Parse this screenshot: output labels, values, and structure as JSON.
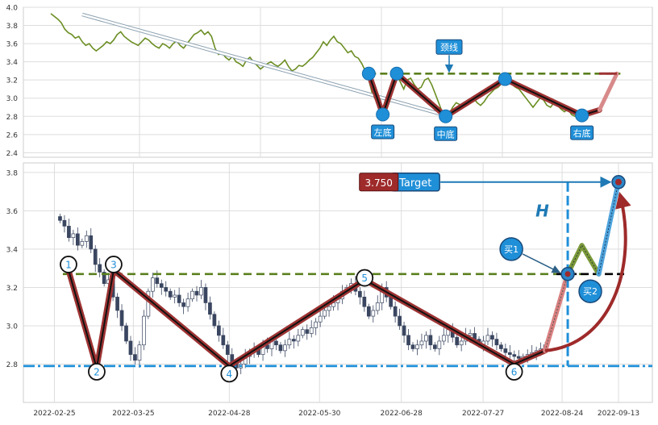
{
  "chart_data": [
    {
      "type": "line",
      "title": "",
      "ylim": [
        2.35,
        4.0
      ],
      "yticks": [
        2.4,
        2.6,
        2.8,
        3.0,
        3.2,
        3.4,
        3.6,
        3.8,
        4.0
      ],
      "ytick_labels": [
        "2.4",
        "2.6",
        "2.8",
        "3.0",
        "3.2",
        "3.4",
        "3.6",
        "3.8",
        "4.0"
      ],
      "grid": true,
      "colors": {
        "price": "#6b8e23",
        "neckline": "#5a7f1e",
        "zigzag_outer": "#9e3333",
        "zigzag_inner": "#111111",
        "pivot": "#1f8fd8",
        "label_box": "#1f8fd8"
      },
      "series": [
        {
          "values": [
            3.93,
            3.9,
            3.87,
            3.83,
            3.76,
            3.72,
            3.7,
            3.66,
            3.68,
            3.62,
            3.58,
            3.6,
            3.55,
            3.52,
            3.55,
            3.58,
            3.62,
            3.6,
            3.64,
            3.7,
            3.73,
            3.68,
            3.65,
            3.62,
            3.6,
            3.58,
            3.62,
            3.66,
            3.64,
            3.6,
            3.57,
            3.55,
            3.6,
            3.58,
            3.55,
            3.6,
            3.63,
            3.58,
            3.55,
            3.6,
            3.65,
            3.7,
            3.72,
            3.75,
            3.7,
            3.73,
            3.68,
            3.55,
            3.48,
            3.5,
            3.45,
            3.42,
            3.46,
            3.4,
            3.38,
            3.35,
            3.42,
            3.45,
            3.4,
            3.36,
            3.32,
            3.35,
            3.38,
            3.4,
            3.37,
            3.35,
            3.38,
            3.42,
            3.35,
            3.3,
            3.32,
            3.36,
            3.35,
            3.38,
            3.42,
            3.45,
            3.5,
            3.55,
            3.62,
            3.58,
            3.64,
            3.68,
            3.62,
            3.6,
            3.55,
            3.5,
            3.52,
            3.46,
            3.44,
            3.38,
            3.3,
            3.2,
            3.05,
            2.98,
            2.9,
            2.82,
            2.86,
            3.05,
            3.2,
            3.25,
            3.18,
            3.1,
            3.2,
            3.22,
            3.15,
            3.1,
            3.12,
            3.2,
            3.22,
            3.15,
            3.05,
            2.95,
            2.85,
            2.8,
            2.82,
            2.9,
            2.95,
            2.93,
            2.9,
            2.95,
            2.98,
            3.0,
            2.95,
            2.92,
            2.96,
            3.02,
            3.06,
            3.1,
            3.12,
            3.16,
            3.2,
            3.18,
            3.15,
            3.12,
            3.1,
            3.05,
            3.0,
            2.95,
            2.9,
            2.95,
            3.0,
            2.98,
            2.92,
            2.9,
            2.95,
            2.92,
            2.88,
            2.85,
            2.88,
            2.82,
            2.8,
            2.84
          ]
        }
      ],
      "neckline": 3.27,
      "pivots": [
        {
          "i": 91,
          "y": 3.27
        },
        {
          "i": 95,
          "y": 2.82
        },
        {
          "i": 99,
          "y": 3.27
        },
        {
          "i": 113,
          "y": 2.8
        },
        {
          "i": 130,
          "y": 3.21
        },
        {
          "i": 152,
          "y": 2.81
        },
        {
          "i": 157,
          "y": 2.87
        },
        {
          "i": 162,
          "y": 3.27
        }
      ],
      "dashed_arrow": {
        "from": {
          "i": 9,
          "y": 3.92
        },
        "to": {
          "i": 114,
          "y": 2.8
        }
      },
      "annotations": [
        {
          "text": "左底",
          "i": 95,
          "y": 2.82
        },
        {
          "text": "中底",
          "i": 113,
          "y": 2.8
        },
        {
          "text": "右底",
          "i": 152,
          "y": 2.81
        },
        {
          "text": "颈线",
          "i": 114,
          "y": 3.27
        }
      ],
      "x_count": 166
    },
    {
      "type": "candlestick",
      "ylim": [
        2.6,
        3.85
      ],
      "yticks": [
        2.8,
        3.0,
        3.2,
        3.4,
        3.6,
        3.8
      ],
      "ytick_labels": [
        "2.8",
        "3.0",
        "3.2",
        "3.4",
        "3.6",
        "3.8"
      ],
      "x_tick_labels": [
        "2022-02-25",
        "2022-03-25",
        "2022-04-28",
        "2022-05-30",
        "2022-06-28",
        "2022-07-27",
        "2022-08-24",
        "2022-09-13"
      ],
      "x_tick_dates": [
        "2022-02-25",
        "2022-03-25",
        "2022-04-28",
        "2022-05-30",
        "2022-06-28",
        "2022-07-27",
        "2022-08-24",
        "2022-09-13"
      ],
      "x_range": [
        "2022-02-14",
        "2022-09-25"
      ],
      "grid": true,
      "colors": {
        "up": "#ffffff",
        "down": "#3a4660",
        "neckline": "#5a7f1e",
        "support": "#1f8fd8",
        "zigzag_outer": "#9e3333",
        "zigzag_inner": "#111111",
        "target_line": "#1f8fd8",
        "value_box": "#9e2a2a",
        "black_dash": "#000000"
      },
      "candles_close": [
        3.55,
        3.52,
        3.46,
        3.48,
        3.42,
        3.44,
        3.47,
        3.4,
        3.32,
        3.28,
        3.22,
        3.24,
        3.15,
        3.08,
        3.0,
        2.92,
        2.85,
        2.82,
        2.9,
        3.05,
        3.18,
        3.25,
        3.22,
        3.2,
        3.18,
        3.15,
        3.16,
        3.12,
        3.1,
        3.14,
        3.18,
        3.16,
        3.2,
        3.12,
        3.06,
        3.0,
        2.95,
        2.9,
        2.85,
        2.8,
        2.78,
        2.8,
        2.84,
        2.86,
        2.88,
        2.85,
        2.9,
        2.88,
        2.92,
        2.9,
        2.87,
        2.9,
        2.93,
        2.92,
        2.95,
        2.98,
        2.96,
        2.99,
        3.02,
        3.05,
        3.08,
        3.1,
        3.12,
        3.14,
        3.18,
        3.2,
        3.22,
        3.18,
        3.15,
        3.1,
        3.05,
        3.08,
        3.12,
        3.2,
        3.15,
        3.1,
        3.05,
        3.0,
        2.95,
        2.9,
        2.88,
        2.9,
        2.92,
        2.95,
        2.9,
        2.88,
        2.92,
        2.95,
        2.98,
        2.94,
        2.9,
        2.92,
        2.95,
        2.96,
        2.93,
        2.9,
        2.92,
        2.95,
        2.93,
        2.9,
        2.88,
        2.86,
        2.85,
        2.84,
        2.83,
        2.84,
        2.85,
        2.86,
        2.87,
        2.88,
        2.9
      ],
      "neckline": 3.27,
      "support": 2.79,
      "value_label": "3.750",
      "target_label": "Target",
      "height_label": "H",
      "pivots": [
        {
          "n": "1",
          "date": "2022-03-02",
          "y": 3.32
        },
        {
          "n": "2",
          "date": "2022-03-12",
          "y": 2.76
        },
        {
          "n": "3",
          "date": "2022-03-18",
          "y": 3.32
        },
        {
          "n": "4",
          "date": "2022-04-28",
          "y": 2.75
        },
        {
          "n": "5",
          "date": "2022-06-15",
          "y": 3.25
        },
        {
          "n": "6",
          "date": "2022-08-07",
          "y": 2.76
        }
      ],
      "zigzag": [
        {
          "date": "2022-03-02",
          "y": 3.29
        },
        {
          "date": "2022-03-12",
          "y": 2.78
        },
        {
          "date": "2022-03-18",
          "y": 3.29
        },
        {
          "date": "2022-04-28",
          "y": 2.79
        },
        {
          "date": "2022-06-15",
          "y": 3.24
        },
        {
          "date": "2022-08-07",
          "y": 2.8
        },
        {
          "date": "2022-08-18",
          "y": 2.87
        }
      ],
      "buy_points": [
        {
          "label": "买1",
          "date": "2022-08-26",
          "y": 3.27
        },
        {
          "label": "买2",
          "date": "2022-09-06",
          "y": 3.27
        }
      ],
      "target": {
        "date": "2022-09-13",
        "y": 3.75
      }
    }
  ]
}
